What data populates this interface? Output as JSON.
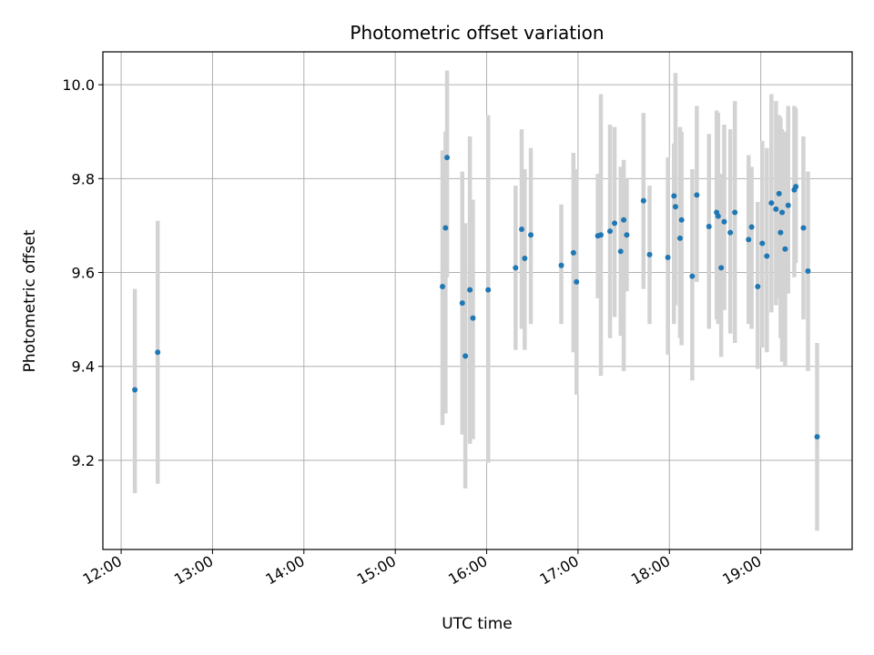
{
  "chart_data": {
    "type": "scatter",
    "title": "Photometric offset variation",
    "xlabel": "UTC time",
    "ylabel": "Photometric offset",
    "x_tick_labels": [
      "12:00",
      "13:00",
      "14:00",
      "15:00",
      "16:00",
      "17:00",
      "18:00",
      "19:00"
    ],
    "y_tick_labels": [
      "9.2",
      "9.4",
      "9.6",
      "9.8",
      "10.0"
    ],
    "y_ticks": [
      9.2,
      9.4,
      9.6,
      9.8,
      10.0
    ],
    "xlim": [
      "11:48",
      "20:00"
    ],
    "ylim": [
      9.01,
      10.07
    ],
    "grid": true,
    "point_color": "#1f77b4",
    "errorbar_color": "#d3d3d3",
    "series": [
      {
        "x": [
          "12:09",
          "12:24",
          "15:31",
          "15:33",
          "15:34",
          "15:44",
          "15:46",
          "15:49",
          "15:51",
          "16:01",
          "16:19",
          "16:23",
          "16:25",
          "16:29",
          "16:49",
          "16:57",
          "16:59",
          "17:13",
          "17:15",
          "17:21",
          "17:24",
          "17:28",
          "17:30",
          "17:32",
          "17:43",
          "17:47",
          "17:59",
          "18:03",
          "18:04",
          "18:07",
          "18:08",
          "18:15",
          "18:18",
          "18:26",
          "18:31",
          "18:32",
          "18:34",
          "18:36",
          "18:40",
          "18:43",
          "18:52",
          "18:54",
          "18:58",
          "19:01",
          "19:04",
          "19:07",
          "19:10",
          "19:12",
          "19:13",
          "19:14",
          "19:16",
          "19:18",
          "19:22",
          "19:23",
          "19:28",
          "19:31",
          "19:37"
        ],
        "y": [
          9.35,
          9.43,
          9.57,
          9.695,
          9.845,
          9.535,
          9.422,
          9.563,
          9.503,
          9.563,
          9.61,
          9.692,
          9.63,
          9.68,
          9.615,
          9.642,
          9.58,
          9.678,
          9.68,
          9.688,
          9.705,
          9.645,
          9.712,
          9.68,
          9.753,
          9.638,
          9.632,
          9.763,
          9.74,
          9.673,
          9.712,
          9.592,
          9.765,
          9.698,
          9.728,
          9.72,
          9.61,
          9.708,
          9.685,
          9.728,
          9.67,
          9.697,
          9.57,
          9.662,
          9.635,
          9.748,
          9.735,
          9.768,
          9.685,
          9.728,
          9.65,
          9.743,
          9.776,
          9.783,
          9.695,
          9.603,
          9.25
        ],
        "yerr_low": [
          9.13,
          9.15,
          9.275,
          9.3,
          9.59,
          9.255,
          9.14,
          9.235,
          9.245,
          9.195,
          9.435,
          9.48,
          9.435,
          9.49,
          9.49,
          9.43,
          9.34,
          9.545,
          9.38,
          9.46,
          9.505,
          9.465,
          9.39,
          9.56,
          9.565,
          9.49,
          9.425,
          9.49,
          9.53,
          9.46,
          9.445,
          9.37,
          9.58,
          9.48,
          9.5,
          9.49,
          9.42,
          9.52,
          9.47,
          9.45,
          9.49,
          9.48,
          9.395,
          9.44,
          9.43,
          9.515,
          9.53,
          9.545,
          9.46,
          9.41,
          9.4,
          9.555,
          9.59,
          9.62,
          9.5,
          9.39,
          9.05
        ],
        "yerr_high": [
          9.565,
          9.71,
          9.86,
          9.9,
          10.03,
          9.815,
          9.705,
          9.89,
          9.755,
          9.935,
          9.785,
          9.905,
          9.82,
          9.865,
          9.745,
          9.855,
          9.82,
          9.81,
          9.98,
          9.915,
          9.91,
          9.825,
          9.84,
          9.8,
          9.94,
          9.785,
          9.845,
          9.875,
          10.025,
          9.91,
          9.9,
          9.82,
          9.955,
          9.895,
          9.945,
          9.94,
          9.81,
          9.915,
          9.905,
          9.965,
          9.85,
          9.825,
          9.75,
          9.88,
          9.865,
          9.98,
          9.965,
          9.935,
          9.93,
          9.905,
          9.9,
          9.955,
          9.955,
          9.95,
          9.89,
          9.815,
          9.45
        ]
      }
    ]
  }
}
